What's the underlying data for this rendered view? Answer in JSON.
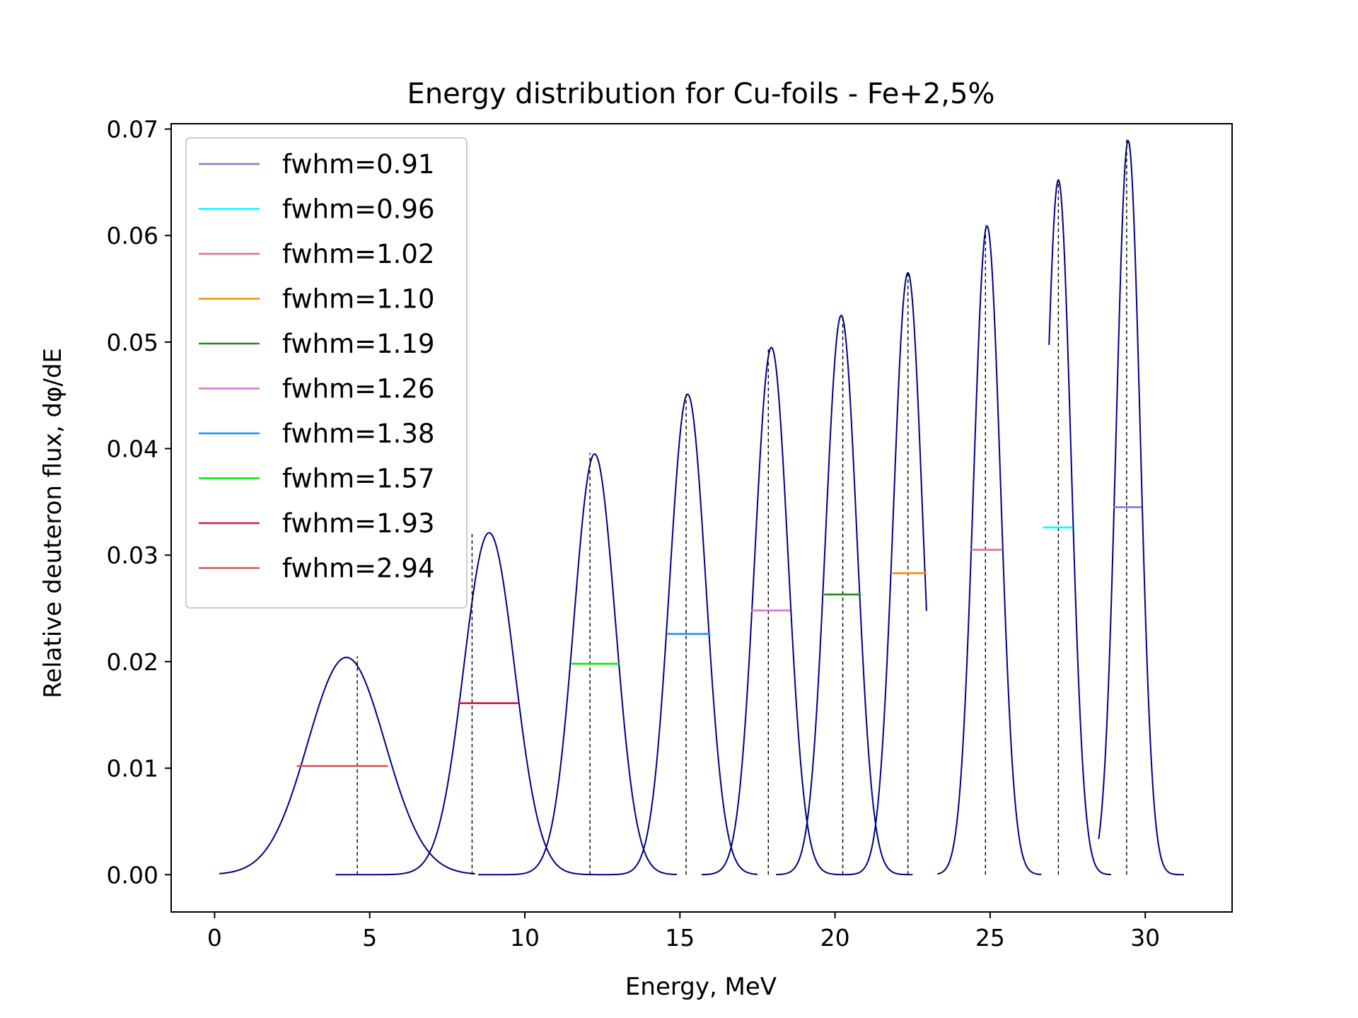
{
  "chart_data": {
    "type": "line",
    "title": "Energy distribution for Cu-foils - Fe+2,5%",
    "xlabel": "Energy, MeV",
    "ylabel": "Relative deuteron flux, dφ/dE",
    "xlim": [
      -1.4,
      32.8
    ],
    "ylim": [
      -0.0035,
      0.0705
    ],
    "xticks": [
      "0",
      "5",
      "10",
      "15",
      "20",
      "25",
      "30"
    ],
    "yticks": [
      "0.00",
      "0.01",
      "0.02",
      "0.03",
      "0.04",
      "0.05",
      "0.06",
      "0.07"
    ],
    "grid": false,
    "legend_position": "upper-left",
    "curve_color": "#000080",
    "series": [
      {
        "name": "fwhm=2.94",
        "color": "#cd5c5c",
        "peak_x": 4.25,
        "peak_y": 0.0204,
        "fwhm_segment": [
          2.65,
          5.59
        ],
        "fwhm_y": 0.0102,
        "marker_x": 4.6,
        "marker_top": 0.0205,
        "range": [
          0.15,
          8.4
        ]
      },
      {
        "name": "fwhm=1.93",
        "color": "#dc143c",
        "peak_x": 8.85,
        "peak_y": 0.0321,
        "fwhm_segment": [
          7.85,
          9.78
        ],
        "fwhm_y": 0.0161,
        "marker_x": 8.3,
        "marker_top": 0.0322,
        "range": [
          3.9,
          12.3
        ]
      },
      {
        "name": "fwhm=1.57",
        "color": "#00ee00",
        "peak_x": 12.25,
        "peak_y": 0.0395,
        "fwhm_segment": [
          11.5,
          13.07
        ],
        "fwhm_y": 0.0198,
        "marker_x": 12.1,
        "marker_top": 0.0396,
        "range": [
          8.5,
          14.9
        ]
      },
      {
        "name": "fwhm=1.38",
        "color": "#1e90ff",
        "peak_x": 15.25,
        "peak_y": 0.0451,
        "fwhm_segment": [
          14.6,
          15.98
        ],
        "fwhm_y": 0.0226,
        "marker_x": 15.2,
        "marker_top": 0.0452,
        "range": [
          12.3,
          17.5
        ]
      },
      {
        "name": "fwhm=1.26",
        "color": "#da70d6",
        "peak_x": 17.95,
        "peak_y": 0.0495,
        "fwhm_segment": [
          17.3,
          18.56
        ],
        "fwhm_y": 0.0248,
        "marker_x": 17.85,
        "marker_top": 0.0496,
        "range": [
          15.7,
          20.3
        ]
      },
      {
        "name": "fwhm=1.19",
        "color": "#228b22",
        "peak_x": 20.2,
        "peak_y": 0.0525,
        "fwhm_segment": [
          19.65,
          20.84
        ],
        "fwhm_y": 0.0263,
        "marker_x": 20.25,
        "marker_top": 0.0526,
        "range": [
          18.1,
          22.5
        ]
      },
      {
        "name": "fwhm=1.10",
        "color": "#ff8c00",
        "peak_x": 22.35,
        "peak_y": 0.0565,
        "fwhm_segment": [
          21.85,
          22.95
        ],
        "fwhm_y": 0.0283,
        "marker_x": 22.35,
        "marker_top": 0.0566,
        "range": [
          20.3,
          22.95
        ]
      },
      {
        "name": "fwhm=1.02",
        "color": "#db7093",
        "peak_x": 24.9,
        "peak_y": 0.0609,
        "fwhm_segment": [
          24.38,
          25.4
        ],
        "fwhm_y": 0.0305,
        "marker_x": 24.85,
        "marker_top": 0.061,
        "range": [
          23.3,
          26.65
        ]
      },
      {
        "name": "fwhm=0.96",
        "color": "#00ffff",
        "peak_x": 27.2,
        "peak_y": 0.0652,
        "fwhm_segment": [
          26.7,
          27.66
        ],
        "fwhm_y": 0.0326,
        "marker_x": 27.2,
        "marker_top": 0.0653,
        "range": [
          26.9,
          28.9
        ]
      },
      {
        "name": "fwhm=0.91",
        "color": "#9370db",
        "peak_x": 29.45,
        "peak_y": 0.0689,
        "fwhm_segment": [
          28.98,
          29.89
        ],
        "fwhm_y": 0.0345,
        "marker_x": 29.4,
        "marker_top": 0.069,
        "range": [
          28.5,
          31.25
        ]
      }
    ]
  }
}
